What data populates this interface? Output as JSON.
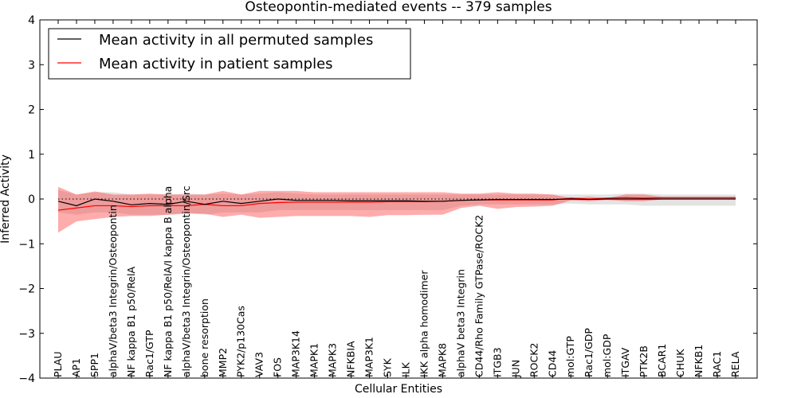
{
  "chart_data": {
    "type": "line",
    "title": "Osteopontin-mediated events -- 379 samples",
    "xlabel": "Cellular Entities",
    "ylabel": "Inferred Activity",
    "ylim": [
      -4,
      4
    ],
    "yticks": [
      -4,
      -3,
      -2,
      -1,
      0,
      1,
      2,
      3,
      4
    ],
    "ytick_labels": [
      "−4",
      "−3",
      "−2",
      "−1",
      "0",
      "1",
      "2",
      "3",
      "4"
    ],
    "legend_position": "top-left",
    "categories": [
      "PLAU",
      "AP1",
      "SPP1",
      "alphaV/beta3 Integrin/Osteopontin",
      "NF kappa B1 p50/RelA",
      "Rac1/GTP",
      "NF kappa B1 p50/RelA/I kappa B alpha",
      "alphaV/beta3 Integrin/Osteopontin/Src",
      "bone resorption",
      "MMP2",
      "PYK2/p130Cas",
      "VAV3",
      "FOS",
      "MAP3K14",
      "MAPK1",
      "MAPK3",
      "NFKBIA",
      "MAP3K1",
      "SYK",
      "ILK",
      "IKK alpha homodimer",
      "MAPK8",
      "alphaV beta3 Integrin",
      "CD44/Rho Family GTPase/ROCK2",
      "ITGB3",
      "JUN",
      "ROCK2",
      "CD44",
      "mol:GTP",
      "Rac1/GDP",
      "mol:GDP",
      "ITGAV",
      "PTK2B",
      "BCAR1",
      "CHUK",
      "NFKB1",
      "RAC1",
      "RELA"
    ],
    "series": [
      {
        "name": "Mean activity in all permuted samples",
        "color": "#000000",
        "values": [
          -0.05,
          -0.15,
          0.0,
          -0.05,
          -0.13,
          -0.1,
          -0.12,
          -0.05,
          -0.12,
          -0.05,
          -0.1,
          -0.05,
          0.0,
          -0.03,
          -0.03,
          -0.03,
          -0.04,
          -0.04,
          -0.04,
          -0.04,
          -0.05,
          -0.05,
          -0.03,
          -0.02,
          -0.01,
          -0.01,
          -0.01,
          -0.01,
          0.0,
          -0.01,
          0.0,
          0.0,
          0.0,
          0.0,
          0.0,
          0.0,
          0.0,
          0.0
        ],
        "band_lower": [
          -0.3,
          -0.35,
          -0.3,
          -0.3,
          -0.35,
          -0.35,
          -0.35,
          -0.3,
          -0.35,
          -0.3,
          -0.3,
          -0.3,
          -0.25,
          -0.25,
          -0.25,
          -0.25,
          -0.25,
          -0.25,
          -0.25,
          -0.25,
          -0.25,
          -0.25,
          -0.15,
          -0.12,
          -0.12,
          -0.12,
          -0.12,
          -0.12,
          -0.1,
          -0.12,
          -0.12,
          -0.12,
          -0.15,
          -0.15,
          -0.15,
          -0.15,
          -0.15,
          -0.15
        ],
        "band_upper": [
          0.2,
          0.1,
          0.15,
          0.15,
          0.1,
          0.1,
          0.1,
          0.12,
          0.1,
          0.12,
          0.1,
          0.12,
          0.15,
          0.12,
          0.1,
          0.1,
          0.1,
          0.1,
          0.1,
          0.1,
          0.1,
          0.1,
          0.1,
          0.1,
          0.1,
          0.1,
          0.1,
          0.1,
          0.1,
          0.1,
          0.1,
          0.12,
          0.12,
          0.1,
          0.1,
          0.1,
          0.1,
          0.1
        ]
      },
      {
        "name": "Mean activity in patient samples",
        "color": "#ff0000",
        "values": [
          -0.25,
          -0.2,
          -0.15,
          -0.15,
          -0.17,
          -0.15,
          -0.15,
          -0.15,
          -0.12,
          -0.15,
          -0.15,
          -0.1,
          -0.08,
          -0.07,
          -0.07,
          -0.07,
          -0.07,
          -0.07,
          -0.06,
          -0.06,
          -0.06,
          -0.05,
          -0.03,
          -0.02,
          -0.02,
          -0.02,
          -0.02,
          -0.02,
          0.02,
          0.0,
          0.02,
          0.03,
          0.02,
          0.03,
          0.03,
          0.03,
          0.03,
          0.03
        ],
        "band_lower": [
          -0.75,
          -0.5,
          -0.45,
          -0.4,
          -0.38,
          -0.38,
          -0.35,
          -0.33,
          -0.33,
          -0.4,
          -0.35,
          -0.42,
          -0.4,
          -0.38,
          -0.38,
          -0.38,
          -0.38,
          -0.4,
          -0.36,
          -0.36,
          -0.35,
          -0.35,
          -0.2,
          -0.15,
          -0.22,
          -0.18,
          -0.17,
          -0.15,
          -0.03,
          -0.05,
          -0.02,
          -0.05,
          -0.05,
          -0.01,
          -0.01,
          -0.01,
          -0.01,
          -0.01
        ],
        "band_upper": [
          0.27,
          0.1,
          0.17,
          0.1,
          0.1,
          0.12,
          0.1,
          0.1,
          0.1,
          0.18,
          0.1,
          0.18,
          0.18,
          0.18,
          0.15,
          0.15,
          0.15,
          0.15,
          0.15,
          0.15,
          0.15,
          0.15,
          0.12,
          0.12,
          0.15,
          0.12,
          0.12,
          0.1,
          0.02,
          0.05,
          0.02,
          0.1,
          0.1,
          0.05,
          0.05,
          0.05,
          0.05,
          0.05
        ]
      }
    ],
    "reference_line": {
      "y": 0,
      "style": "dotted"
    }
  }
}
